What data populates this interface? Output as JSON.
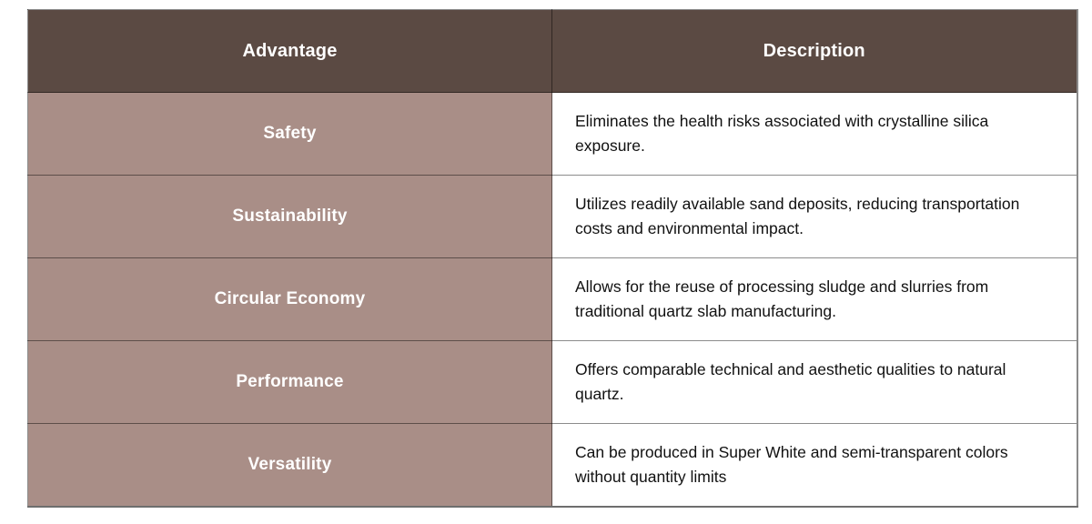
{
  "table": {
    "columns": {
      "advantage_header": "Advantage",
      "description_header": "Description"
    },
    "rows": [
      {
        "advantage": "Safety",
        "description": "Eliminates the health risks associated with crystalline silica exposure."
      },
      {
        "advantage": "Sustainability",
        "description": "Utilizes readily available sand deposits, reducing transportation costs and environmental impact."
      },
      {
        "advantage": "Circular Economy",
        "description": "Allows for the reuse of processing sludge and slurries from traditional quartz slab manufacturing."
      },
      {
        "advantage": "Performance",
        "description": "Offers comparable technical and aesthetic qualities to natural quartz."
      },
      {
        "advantage": "Versatility",
        "description": "Can be produced in Super White and semi-transparent colors without quantity limits"
      }
    ],
    "colors": {
      "header_bg": "#5b4a43",
      "advantage_bg": "#a98e87",
      "header_text": "#ffffff",
      "description_text": "#111111",
      "grid_line": "#7f7f7f",
      "page_bg": "#ffffff"
    }
  }
}
